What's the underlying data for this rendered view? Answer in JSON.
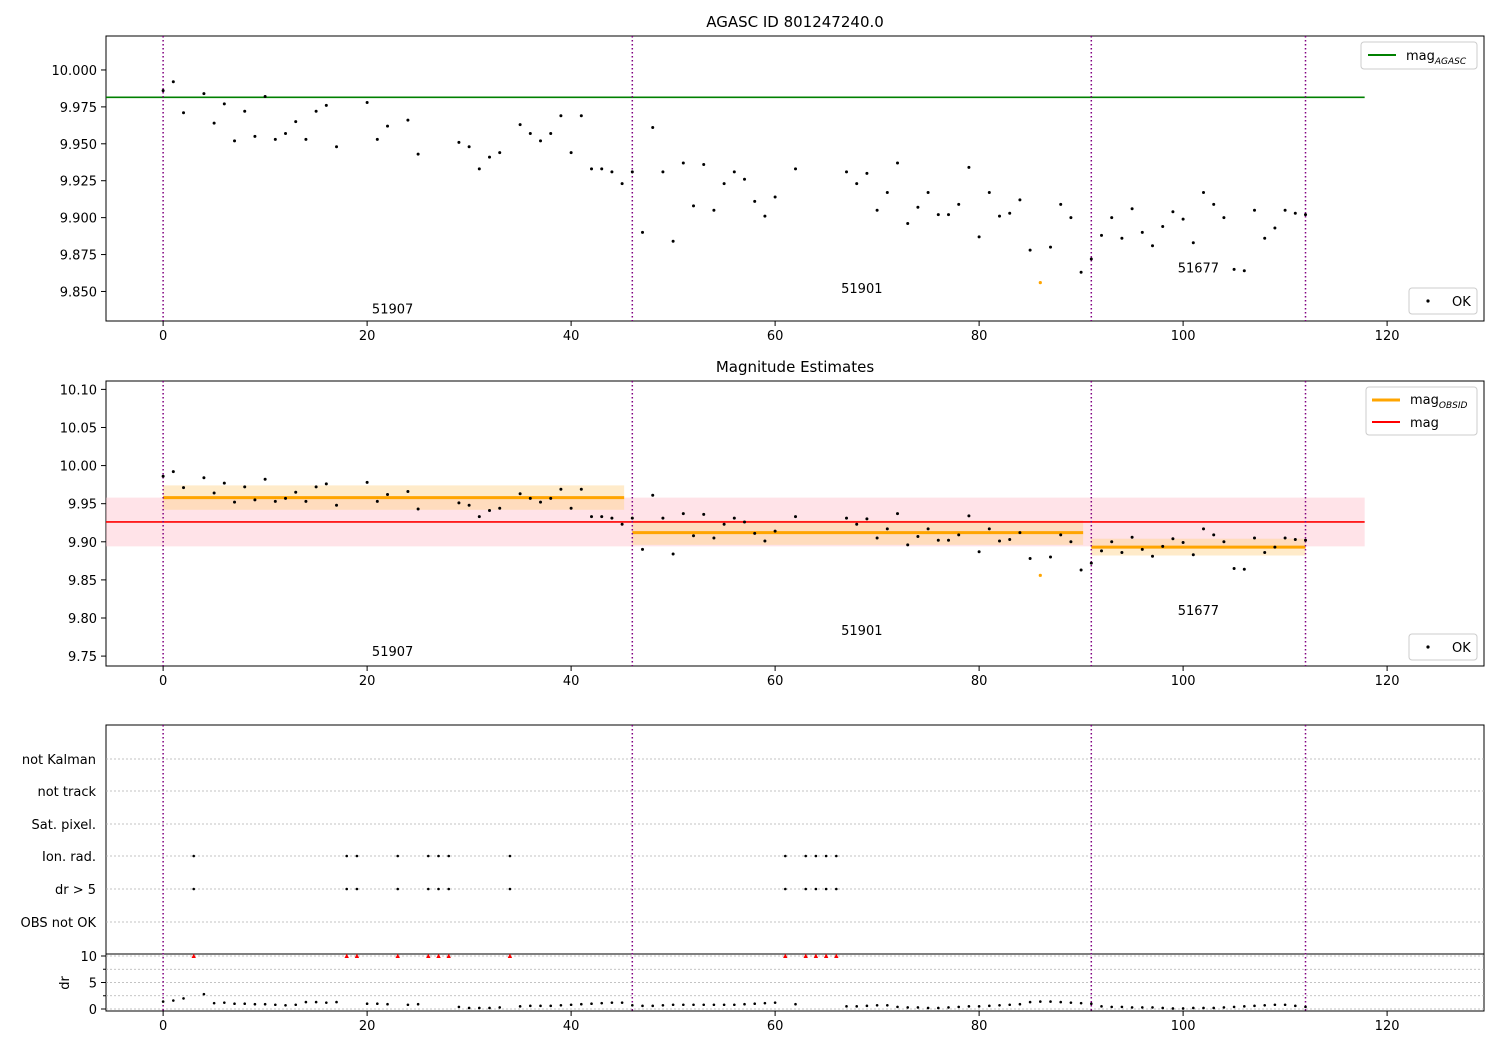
{
  "chart_data": [
    {
      "type": "scatter",
      "title": "AGASC ID 801247240.0",
      "xlim": [
        -5.6,
        129.5
      ],
      "ylim": [
        9.83,
        10.023
      ],
      "x_ticks": [
        0,
        20,
        40,
        60,
        80,
        100,
        120
      ],
      "y_ticks": [
        9.85,
        9.875,
        9.9,
        9.925,
        9.95,
        9.975,
        10.0
      ],
      "x_tick_labels": [
        "0",
        "20",
        "40",
        "60",
        "80",
        "100",
        "120"
      ],
      "y_tick_labels": [
        "9.850",
        "9.875",
        "9.900",
        "9.925",
        "9.950",
        "9.975",
        "10.000"
      ],
      "grid": false,
      "obsid_boundaries": [
        0,
        46,
        91,
        112
      ],
      "obsid_labels": [
        {
          "text": "51907",
          "x": 22.5,
          "y": 9.835
        },
        {
          "text": "51901",
          "x": 68.5,
          "y": 9.849
        },
        {
          "text": "51677",
          "x": 101.5,
          "y": 9.863
        }
      ],
      "reference_lines": [
        {
          "name": "mag",
          "sub": "AGASC",
          "y": 9.9815,
          "x_range": [
            -5.6,
            117.8
          ],
          "color": "#008000"
        }
      ],
      "legends": [
        {
          "position": "top-right",
          "entries": [
            {
              "kind": "line",
              "color": "#008000",
              "label": "mag",
              "sub": "AGASC"
            }
          ]
        },
        {
          "position": "bottom-right",
          "entries": [
            {
              "kind": "dot",
              "color": "#000000",
              "label": "OK"
            }
          ]
        }
      ]
    },
    {
      "type": "scatter",
      "title": "Magnitude Estimates",
      "xlim": [
        -5.6,
        129.5
      ],
      "ylim": [
        9.737,
        10.111
      ],
      "x_ticks": [
        0,
        20,
        40,
        60,
        80,
        100,
        120
      ],
      "y_ticks": [
        9.75,
        9.8,
        9.85,
        9.9,
        9.95,
        10.0,
        10.05,
        10.1
      ],
      "x_tick_labels": [
        "0",
        "20",
        "40",
        "60",
        "80",
        "100",
        "120"
      ],
      "y_tick_labels": [
        "9.75",
        "9.80",
        "9.85",
        "9.90",
        "9.95",
        "10.00",
        "10.05",
        "10.10"
      ],
      "grid": false,
      "obsid_boundaries": [
        0,
        46,
        91,
        112
      ],
      "obsid_labels": [
        {
          "text": "51907",
          "x": 22.5,
          "y": 9.75
        },
        {
          "text": "51901",
          "x": 68.5,
          "y": 9.778
        },
        {
          "text": "51677",
          "x": 101.5,
          "y": 9.804
        }
      ],
      "mag_line": {
        "name": "mag",
        "y": 9.926,
        "band": [
          9.894,
          9.958
        ],
        "x_range": [
          -5.6,
          117.8
        ],
        "color": "#ff0000"
      },
      "obsid_segments": [
        {
          "x_range": [
            0,
            45.2
          ],
          "y": 9.958,
          "band": [
            9.942,
            9.974
          ]
        },
        {
          "x_range": [
            46,
            90.2
          ],
          "y": 9.912,
          "band": [
            9.896,
            9.928
          ]
        },
        {
          "x_range": [
            91,
            112
          ],
          "y": 9.893,
          "band": [
            9.882,
            9.904
          ]
        }
      ],
      "legends": [
        {
          "position": "top-right",
          "entries": [
            {
              "kind": "line",
              "color": "#ffa500",
              "label": "mag",
              "sub": "OBSID"
            },
            {
              "kind": "line",
              "color": "#ff0000",
              "label": "mag",
              "sub": ""
            }
          ]
        },
        {
          "position": "bottom-right",
          "entries": [
            {
              "kind": "dot",
              "color": "#000000",
              "label": "OK"
            }
          ]
        }
      ]
    },
    {
      "type": "scatter",
      "title": "",
      "xlim": [
        -5.6,
        129.5
      ],
      "x_ticks": [
        0,
        20,
        40,
        60,
        80,
        100,
        120
      ],
      "x_tick_labels": [
        "0",
        "20",
        "40",
        "60",
        "80",
        "100",
        "120"
      ],
      "flag_categories": [
        "not Kalman",
        "not track",
        "Sat. pixel.",
        "Ion. rad.",
        "dr > 5",
        "OBS not OK"
      ],
      "flag_points": {
        "Ion. rad.": [
          3,
          18,
          19,
          23,
          26,
          27,
          28,
          34,
          61,
          63,
          64,
          65,
          66
        ],
        "dr > 5": [
          3,
          18,
          19,
          23,
          26,
          27,
          28,
          34,
          61,
          63,
          64,
          65,
          66
        ]
      },
      "dr_ylabel": "dr",
      "dr_ylim": [
        -0.5,
        10.6
      ],
      "dr_ticks": [
        0,
        5,
        10
      ],
      "dr_tick_labels": [
        "0",
        "5",
        "10"
      ],
      "dr_clipped_marker_x": [
        3,
        18,
        19,
        23,
        26,
        27,
        28,
        34,
        61,
        63,
        64,
        65,
        66
      ],
      "dr_clipped_value": 10,
      "obsid_boundaries": [
        0,
        46,
        91,
        112
      ],
      "grid": true
    }
  ],
  "series": {
    "mag_ok": [
      [
        0,
        9.986
      ],
      [
        1,
        9.992
      ],
      [
        2,
        9.971
      ],
      [
        4,
        9.984
      ],
      [
        5,
        9.964
      ],
      [
        6,
        9.977
      ],
      [
        7,
        9.952
      ],
      [
        8,
        9.972
      ],
      [
        9,
        9.955
      ],
      [
        10,
        9.982
      ],
      [
        11,
        9.953
      ],
      [
        12,
        9.957
      ],
      [
        13,
        9.965
      ],
      [
        14,
        9.953
      ],
      [
        15,
        9.972
      ],
      [
        16,
        9.976
      ],
      [
        17,
        9.948
      ],
      [
        20,
        9.978
      ],
      [
        21,
        9.953
      ],
      [
        22,
        9.962
      ],
      [
        24,
        9.966
      ],
      [
        25,
        9.943
      ],
      [
        29,
        9.951
      ],
      [
        30,
        9.948
      ],
      [
        31,
        9.933
      ],
      [
        32,
        9.941
      ],
      [
        33,
        9.944
      ],
      [
        35,
        9.963
      ],
      [
        36,
        9.957
      ],
      [
        37,
        9.952
      ],
      [
        38,
        9.957
      ],
      [
        39,
        9.969
      ],
      [
        40,
        9.944
      ],
      [
        41,
        9.969
      ],
      [
        42,
        9.933
      ],
      [
        43,
        9.933
      ],
      [
        44,
        9.931
      ],
      [
        45,
        9.923
      ],
      [
        46,
        9.931
      ],
      [
        47,
        9.89
      ],
      [
        48,
        9.961
      ],
      [
        49,
        9.931
      ],
      [
        50,
        9.884
      ],
      [
        51,
        9.937
      ],
      [
        52,
        9.908
      ],
      [
        53,
        9.936
      ],
      [
        54,
        9.905
      ],
      [
        55,
        9.923
      ],
      [
        56,
        9.931
      ],
      [
        57,
        9.926
      ],
      [
        58,
        9.911
      ],
      [
        59,
        9.901
      ],
      [
        60,
        9.914
      ],
      [
        62,
        9.933
      ],
      [
        67,
        9.931
      ],
      [
        68,
        9.923
      ],
      [
        69,
        9.93
      ],
      [
        70,
        9.905
      ],
      [
        71,
        9.917
      ],
      [
        72,
        9.937
      ],
      [
        73,
        9.896
      ],
      [
        74,
        9.907
      ],
      [
        75,
        9.917
      ],
      [
        76,
        9.902
      ],
      [
        77,
        9.902
      ],
      [
        78,
        9.909
      ],
      [
        79,
        9.934
      ],
      [
        80,
        9.887
      ],
      [
        81,
        9.917
      ],
      [
        82,
        9.901
      ],
      [
        83,
        9.903
      ],
      [
        84,
        9.912
      ],
      [
        85,
        9.878
      ],
      [
        87,
        9.88
      ],
      [
        88,
        9.909
      ],
      [
        89,
        9.9
      ],
      [
        90,
        9.863
      ],
      [
        91,
        9.872
      ],
      [
        92,
        9.888
      ],
      [
        93,
        9.9
      ],
      [
        94,
        9.886
      ],
      [
        95,
        9.906
      ],
      [
        96,
        9.89
      ],
      [
        97,
        9.881
      ],
      [
        98,
        9.894
      ],
      [
        99,
        9.904
      ],
      [
        100,
        9.899
      ],
      [
        101,
        9.883
      ],
      [
        102,
        9.917
      ],
      [
        103,
        9.909
      ],
      [
        104,
        9.9
      ],
      [
        105,
        9.865
      ],
      [
        106,
        9.864
      ],
      [
        107,
        9.905
      ],
      [
        108,
        9.886
      ],
      [
        109,
        9.893
      ],
      [
        110,
        9.905
      ],
      [
        111,
        9.903
      ],
      [
        112,
        9.902
      ]
    ],
    "mag_flagged": [
      [
        86,
        9.856
      ]
    ],
    "dr": [
      [
        0,
        1.4
      ],
      [
        1,
        1.6
      ],
      [
        2,
        2.0
      ],
      [
        4,
        2.8
      ],
      [
        5,
        1.1
      ],
      [
        6,
        1.2
      ],
      [
        7,
        1.0
      ],
      [
        8,
        1.0
      ],
      [
        9,
        0.9
      ],
      [
        10,
        0.9
      ],
      [
        11,
        0.8
      ],
      [
        12,
        0.7
      ],
      [
        13,
        0.8
      ],
      [
        14,
        1.3
      ],
      [
        15,
        1.3
      ],
      [
        16,
        1.2
      ],
      [
        17,
        1.3
      ],
      [
        20,
        1.0
      ],
      [
        21,
        1.0
      ],
      [
        22,
        0.9
      ],
      [
        24,
        0.8
      ],
      [
        25,
        0.9
      ],
      [
        29,
        0.4
      ],
      [
        30,
        0.2
      ],
      [
        31,
        0.2
      ],
      [
        32,
        0.2
      ],
      [
        33,
        0.3
      ],
      [
        35,
        0.5
      ],
      [
        36,
        0.6
      ],
      [
        37,
        0.6
      ],
      [
        38,
        0.6
      ],
      [
        39,
        0.7
      ],
      [
        40,
        0.8
      ],
      [
        41,
        0.9
      ],
      [
        42,
        1.0
      ],
      [
        43,
        1.1
      ],
      [
        44,
        1.2
      ],
      [
        45,
        1.2
      ],
      [
        46,
        0.7
      ],
      [
        47,
        0.6
      ],
      [
        48,
        0.6
      ],
      [
        49,
        0.7
      ],
      [
        50,
        0.8
      ],
      [
        51,
        0.8
      ],
      [
        52,
        0.8
      ],
      [
        53,
        0.8
      ],
      [
        54,
        0.8
      ],
      [
        55,
        0.8
      ],
      [
        56,
        0.8
      ],
      [
        57,
        0.9
      ],
      [
        58,
        1.0
      ],
      [
        59,
        1.1
      ],
      [
        60,
        1.2
      ],
      [
        62,
        0.9
      ],
      [
        67,
        0.5
      ],
      [
        68,
        0.5
      ],
      [
        69,
        0.6
      ],
      [
        70,
        0.7
      ],
      [
        71,
        0.7
      ],
      [
        72,
        0.4
      ],
      [
        73,
        0.3
      ],
      [
        74,
        0.3
      ],
      [
        75,
        0.2
      ],
      [
        76,
        0.2
      ],
      [
        77,
        0.3
      ],
      [
        78,
        0.4
      ],
      [
        79,
        0.5
      ],
      [
        80,
        0.5
      ],
      [
        81,
        0.6
      ],
      [
        82,
        0.7
      ],
      [
        83,
        0.8
      ],
      [
        84,
        0.9
      ],
      [
        85,
        1.3
      ],
      [
        86,
        1.4
      ],
      [
        87,
        1.4
      ],
      [
        88,
        1.3
      ],
      [
        89,
        1.2
      ],
      [
        90,
        1.1
      ],
      [
        91,
        1.0
      ],
      [
        92,
        0.5
      ],
      [
        93,
        0.4
      ],
      [
        94,
        0.4
      ],
      [
        95,
        0.3
      ],
      [
        96,
        0.3
      ],
      [
        97,
        0.3
      ],
      [
        98,
        0.2
      ],
      [
        99,
        0.1
      ],
      [
        100,
        0.1
      ],
      [
        101,
        0.2
      ],
      [
        102,
        0.2
      ],
      [
        103,
        0.2
      ],
      [
        104,
        0.3
      ],
      [
        105,
        0.4
      ],
      [
        106,
        0.5
      ],
      [
        107,
        0.6
      ],
      [
        108,
        0.7
      ],
      [
        109,
        0.8
      ],
      [
        110,
        0.8
      ],
      [
        111,
        0.6
      ],
      [
        112,
        0.4
      ]
    ]
  },
  "colors": {
    "ok_point": "#000000",
    "flagged_point": "#ffa500",
    "boundary": "#800080",
    "agasc_line": "#008000",
    "obsid_line": "#ffa500",
    "obsid_band": "#ffd28a",
    "mag_line": "#ff0000",
    "mag_band": "#ffc0cb",
    "clipped_marker": "#ff0000",
    "grid": "#b0b0b0"
  }
}
